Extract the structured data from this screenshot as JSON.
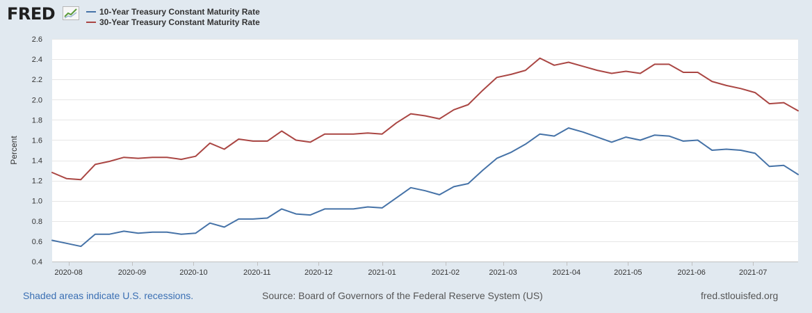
{
  "header": {
    "logo_text": "FRED",
    "logo_mark": "trend-chart-icon"
  },
  "legend": [
    {
      "label": "10-Year Treasury Constant Maturity Rate",
      "color": "#4572a7"
    },
    {
      "label": "30-Year Treasury Constant Maturity Rate",
      "color": "#aa4643"
    }
  ],
  "footer": {
    "recession_note": "Shaded areas indicate U.S. recessions.",
    "source": "Source: Board of Governors of the Federal Reserve System (US)",
    "url": "fred.stlouisfed.org"
  },
  "chart_data": {
    "type": "line",
    "ylabel": "Percent",
    "ylim": [
      0.4,
      2.6
    ],
    "yticks": [
      0.4,
      0.6,
      0.8,
      1.0,
      1.2,
      1.4,
      1.6,
      1.8,
      2.0,
      2.2,
      2.4,
      2.6
    ],
    "ytick_labels": [
      "0.4",
      "0.6",
      "0.8",
      "1.0",
      "1.2",
      "1.4",
      "1.6",
      "1.8",
      "2.0",
      "2.2",
      "2.4",
      "2.6"
    ],
    "xlim": [
      "2020-07-24",
      "2021-07-23"
    ],
    "xticks": [
      "2020-08-01",
      "2020-09-01",
      "2020-10-01",
      "2020-11-01",
      "2020-12-01",
      "2021-01-01",
      "2021-02-01",
      "2021-03-01",
      "2021-04-01",
      "2021-05-01",
      "2021-06-01",
      "2021-07-01"
    ],
    "xtick_labels": [
      "2020-08",
      "2020-09",
      "2020-10",
      "2020-11",
      "2020-12",
      "2021-01",
      "2021-02",
      "2021-03",
      "2021-04",
      "2021-05",
      "2021-06",
      "2021-07"
    ],
    "grid": true,
    "legend_position": "top-left",
    "x": [
      "2020-07-24",
      "2020-07-31",
      "2020-08-07",
      "2020-08-14",
      "2020-08-21",
      "2020-08-28",
      "2020-09-04",
      "2020-09-11",
      "2020-09-18",
      "2020-09-25",
      "2020-10-02",
      "2020-10-09",
      "2020-10-16",
      "2020-10-23",
      "2020-10-30",
      "2020-11-06",
      "2020-11-13",
      "2020-11-20",
      "2020-11-27",
      "2020-12-04",
      "2020-12-11",
      "2020-12-18",
      "2020-12-25",
      "2021-01-01",
      "2021-01-08",
      "2021-01-15",
      "2021-01-22",
      "2021-01-29",
      "2021-02-05",
      "2021-02-12",
      "2021-02-19",
      "2021-02-26",
      "2021-03-05",
      "2021-03-12",
      "2021-03-19",
      "2021-03-26",
      "2021-04-02",
      "2021-04-09",
      "2021-04-16",
      "2021-04-23",
      "2021-04-30",
      "2021-05-07",
      "2021-05-14",
      "2021-05-21",
      "2021-05-28",
      "2021-06-04",
      "2021-06-11",
      "2021-06-18",
      "2021-06-25",
      "2021-07-02",
      "2021-07-09",
      "2021-07-16",
      "2021-07-23"
    ],
    "series": [
      {
        "name": "10-Year Treasury Constant Maturity Rate",
        "color": "#4572a7",
        "values": [
          0.61,
          0.58,
          0.55,
          0.67,
          0.67,
          0.7,
          0.68,
          0.69,
          0.69,
          0.67,
          0.68,
          0.78,
          0.74,
          0.82,
          0.82,
          0.83,
          0.92,
          0.87,
          0.86,
          0.92,
          0.92,
          0.92,
          0.94,
          0.93,
          1.03,
          1.13,
          1.1,
          1.06,
          1.14,
          1.17,
          1.3,
          1.42,
          1.48,
          1.56,
          1.66,
          1.64,
          1.72,
          1.68,
          1.63,
          1.58,
          1.63,
          1.6,
          1.65,
          1.64,
          1.59,
          1.6,
          1.5,
          1.51,
          1.5,
          1.47,
          1.34,
          1.35,
          1.26
        ]
      },
      {
        "name": "30-Year Treasury Constant Maturity Rate",
        "color": "#aa4643",
        "values": [
          1.28,
          1.22,
          1.21,
          1.36,
          1.39,
          1.43,
          1.42,
          1.43,
          1.43,
          1.41,
          1.44,
          1.57,
          1.51,
          1.61,
          1.59,
          1.59,
          1.69,
          1.6,
          1.58,
          1.66,
          1.66,
          1.66,
          1.67,
          1.66,
          1.77,
          1.86,
          1.84,
          1.81,
          1.9,
          1.95,
          2.09,
          2.22,
          2.25,
          2.29,
          2.41,
          2.34,
          2.37,
          2.33,
          2.29,
          2.26,
          2.28,
          2.26,
          2.35,
          2.35,
          2.27,
          2.27,
          2.18,
          2.14,
          2.11,
          2.07,
          1.96,
          1.97,
          1.89
        ]
      }
    ]
  }
}
